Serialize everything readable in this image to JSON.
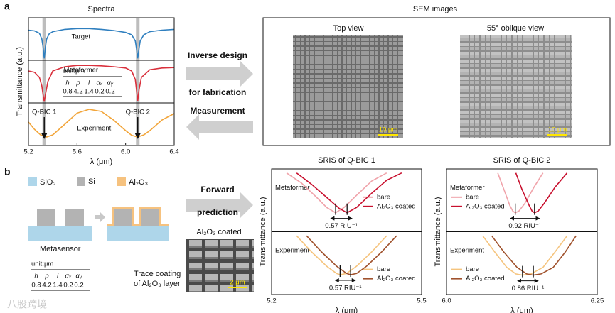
{
  "panel_a": {
    "label": "a",
    "table": {
      "unit": "unit:μm",
      "headers": [
        "h",
        "p",
        "l",
        "αₓ",
        "αᵧ"
      ],
      "values": [
        0.8,
        4.2,
        1.4,
        0.2,
        0.2
      ]
    },
    "flow": {
      "inverse": "Inverse design",
      "fabrication": "for fabrication",
      "measurement": "Measurement"
    },
    "sem": {
      "title": "SEM images",
      "top_view": "Top view",
      "oblique_view": "55° oblique view",
      "scale_bar_1": "10 μm",
      "scale_bar_2": "10 μm"
    }
  },
  "panel_b": {
    "label": "b",
    "materials": [
      "SiO₂",
      "Si",
      "Al₂O₃"
    ],
    "metasensor": "Metasensor",
    "table": {
      "unit": "unit:μm",
      "headers": [
        "h",
        "p",
        "l",
        "αₓ",
        "αᵧ"
      ],
      "values": [
        0.8,
        4.2,
        1.4,
        0.2,
        0.2
      ]
    },
    "coating_note": [
      "Trace coating",
      "of Al₂O₃ layer"
    ],
    "flow": {
      "forward": "Forward",
      "prediction": "prediction"
    },
    "photo": {
      "label": "Al₂O₃ coated",
      "scale_bar": "2 μm"
    }
  },
  "watermark": "八股跨境",
  "chart_data": [
    {
      "type": "line",
      "title": "Spectra",
      "xlabel": "λ (μm)",
      "ylabel": "Transmittance (a.u.)",
      "xlim": [
        5.2,
        6.4
      ],
      "xticks": [
        5.2,
        5.6,
        {
          "value": 6.0,
          "label": "6.0"
        },
        6.4
      ],
      "bands": [
        5.33,
        6.1
      ],
      "band_labels": [
        "Q-BIC 1",
        "Q-BIC 2"
      ],
      "subplots": [
        {
          "ylim": [
            0,
            1.1
          ],
          "series": [
            {
              "name": "Target",
              "color": "#2f7fbf",
              "x": [
                5.2,
                5.25,
                5.29,
                5.31,
                5.32,
                5.33,
                5.34,
                5.35,
                5.37,
                5.4,
                5.5,
                5.6,
                5.7,
                5.8,
                5.9,
                6.0,
                6.05,
                6.08,
                6.09,
                6.1,
                6.11,
                6.12,
                6.15,
                6.2,
                6.3,
                6.4
              ],
              "values": [
                0.78,
                0.76,
                0.7,
                0.55,
                0.35,
                0.05,
                0.35,
                0.55,
                0.68,
                0.74,
                0.8,
                0.82,
                0.82,
                0.8,
                0.77,
                0.72,
                0.66,
                0.5,
                0.3,
                0.05,
                0.3,
                0.5,
                0.66,
                0.74,
                0.78,
                0.8
              ]
            }
          ]
        },
        {
          "ylim": [
            0,
            1
          ],
          "series": [
            {
              "name": "Metaformer",
              "color": "#d9303c",
              "x": [
                5.2,
                5.25,
                5.29,
                5.31,
                5.32,
                5.33,
                5.34,
                5.36,
                5.4,
                5.5,
                5.6,
                5.7,
                5.8,
                5.9,
                6.0,
                6.05,
                6.08,
                6.09,
                6.1,
                6.11,
                6.13,
                6.2,
                6.3,
                6.4
              ],
              "values": [
                0.75,
                0.72,
                0.6,
                0.4,
                0.2,
                0.03,
                0.2,
                0.5,
                0.75,
                0.85,
                0.88,
                0.88,
                0.87,
                0.85,
                0.82,
                0.75,
                0.55,
                0.3,
                0.05,
                0.3,
                0.6,
                0.78,
                0.82,
                0.83
              ]
            }
          ]
        },
        {
          "ylim": [
            0,
            1
          ],
          "series": [
            {
              "name": "Experiment",
              "color": "#f2a53a",
              "x": [
                5.2,
                5.25,
                5.3,
                5.35,
                5.4,
                5.5,
                5.6,
                5.7,
                5.8,
                5.9,
                6.0,
                6.05,
                6.1,
                6.15,
                6.2,
                6.3,
                6.4
              ],
              "values": [
                0.55,
                0.38,
                0.25,
                0.2,
                0.25,
                0.5,
                0.76,
                0.85,
                0.8,
                0.6,
                0.35,
                0.24,
                0.2,
                0.25,
                0.35,
                0.6,
                0.75
              ]
            }
          ]
        }
      ]
    },
    {
      "type": "line",
      "title": "SRIS of Q-BIC 1",
      "xlabel": "λ (μm)",
      "ylabel": "Transmittance (a.u.)",
      "xlim": [
        5.2,
        5.5
      ],
      "xticks": [
        5.2,
        5.5
      ],
      "subplots": [
        {
          "label": "Metaformer",
          "ylim": [
            -0.45,
            1.1
          ],
          "legend": "right",
          "shift_label": "0.57 RIU⁻¹",
          "series": [
            {
              "name": "bare",
              "color": "#f0a3aa",
              "x": [
                5.23,
                5.26,
                5.29,
                5.31,
                5.328,
                5.345,
                5.37,
                5.4,
                5.43
              ],
              "values": [
                1.0,
                0.75,
                0.4,
                0.15,
                0.02,
                0.15,
                0.45,
                0.8,
                1.0
              ]
            },
            {
              "name": "Al₂O₃ coated",
              "color": "#c8102e",
              "x": [
                5.25,
                5.28,
                5.31,
                5.335,
                5.351,
                5.37,
                5.4,
                5.43,
                5.46
              ],
              "values": [
                1.0,
                0.72,
                0.4,
                0.13,
                0.02,
                0.15,
                0.5,
                0.82,
                1.0
              ]
            }
          ]
        },
        {
          "label": "Experiment",
          "ylim": [
            -0.45,
            1.1
          ],
          "legend": "right",
          "shift_label": "0.57 RIU⁻¹",
          "series": [
            {
              "name": "bare",
              "color": "#f5c47e",
              "x": [
                5.25,
                5.28,
                5.31,
                5.33,
                5.337,
                5.35,
                5.37,
                5.4,
                5.43
              ],
              "values": [
                1,
                0.6,
                0.25,
                0.07,
                0.04,
                0.07,
                0.25,
                0.6,
                1
              ]
            },
            {
              "name": "Al₂O₃ coated",
              "color": "#a0522d",
              "x": [
                5.27,
                5.3,
                5.33,
                5.35,
                5.358,
                5.37,
                5.39,
                5.42,
                5.45
              ],
              "values": [
                1,
                0.6,
                0.25,
                0.07,
                0.04,
                0.07,
                0.25,
                0.6,
                1
              ]
            }
          ]
        }
      ]
    },
    {
      "type": "line",
      "title": "SRIS of Q-BIC 2",
      "xlabel": "λ (μm)",
      "ylabel": "Transmittance (a.u.)",
      "xlim": [
        6.0,
        6.25
      ],
      "xticks": [
        {
          "value": 6.0,
          "label": "6.0"
        },
        6.25
      ],
      "subplots": [
        {
          "label": "Metaformer",
          "ylim": [
            -0.45,
            1.1
          ],
          "legend": "left",
          "shift_label": "0.92 RIU⁻¹",
          "series": [
            {
              "name": "bare",
              "color": "#f0a3aa",
              "x": [
                6.085,
                6.095,
                6.105,
                6.11,
                6.114,
                6.12,
                6.13,
                6.145,
                6.16
              ],
              "values": [
                1,
                0.6,
                0.2,
                0.06,
                0.02,
                0.06,
                0.25,
                0.65,
                1
              ]
            },
            {
              "name": "Al₂O₃ coated",
              "color": "#c8102e",
              "x": [
                6.115,
                6.125,
                6.137,
                6.142,
                6.146,
                6.152,
                6.162,
                6.18,
                6.2
              ],
              "values": [
                1,
                0.6,
                0.2,
                0.06,
                0.02,
                0.06,
                0.25,
                0.65,
                1
              ]
            }
          ]
        },
        {
          "label": "Experiment",
          "ylim": [
            -0.45,
            1.1
          ],
          "legend": "left",
          "shift_label": "0.86 RIU⁻¹",
          "series": [
            {
              "name": "bare",
              "color": "#f5c47e",
              "x": [
                6.06,
                6.08,
                6.1,
                6.115,
                6.126,
                6.14,
                6.16,
                6.18,
                6.2
              ],
              "values": [
                1,
                0.6,
                0.22,
                0.06,
                0.03,
                0.06,
                0.22,
                0.6,
                1
              ]
            },
            {
              "name": "Al₂O₃ coated",
              "color": "#a0522d",
              "x": [
                6.075,
                6.095,
                6.117,
                6.133,
                6.144,
                6.157,
                6.177,
                6.197,
                6.215
              ],
              "values": [
                1,
                0.6,
                0.22,
                0.06,
                0.03,
                0.06,
                0.22,
                0.6,
                1
              ]
            }
          ]
        }
      ]
    }
  ]
}
